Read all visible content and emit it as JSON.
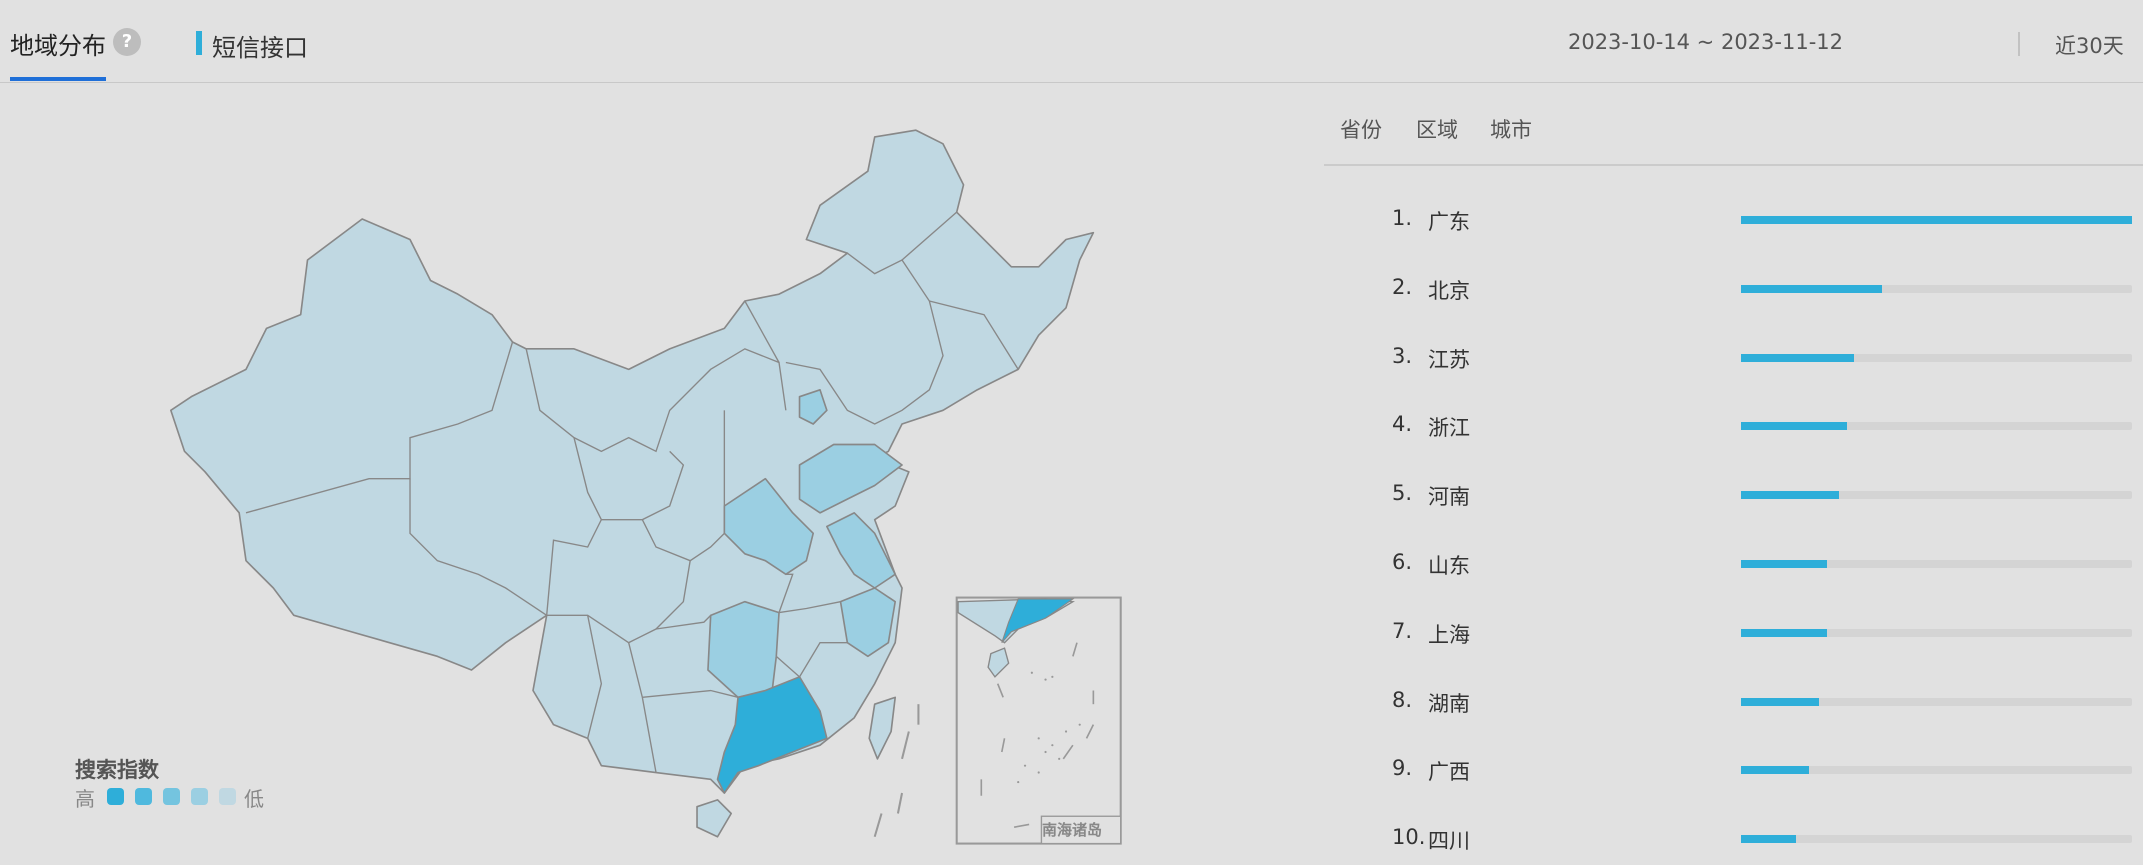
{
  "header": {
    "tabs": [
      {
        "label": "地域分布",
        "active": true
      },
      {
        "label": "短信接口"
      }
    ],
    "help_icon": "question-circle-icon",
    "date_range": "2023-10-14 ~ 2023-11-12",
    "preset": "近30天"
  },
  "subtabs": [
    "省份",
    "区域",
    "城市"
  ],
  "ranking": [
    {
      "rank": "1.",
      "name": "广东",
      "value": 1.0
    },
    {
      "rank": "2.",
      "name": "北京",
      "value": 0.36
    },
    {
      "rank": "3.",
      "name": "江苏",
      "value": 0.29
    },
    {
      "rank": "4.",
      "name": "浙江",
      "value": 0.27
    },
    {
      "rank": "5.",
      "name": "河南",
      "value": 0.25
    },
    {
      "rank": "6.",
      "name": "山东",
      "value": 0.22
    },
    {
      "rank": "7.",
      "name": "上海",
      "value": 0.22
    },
    {
      "rank": "8.",
      "name": "湖南",
      "value": 0.2
    },
    {
      "rank": "9.",
      "name": "广西",
      "value": 0.175
    },
    {
      "rank": "10.",
      "name": "四川",
      "value": 0.14
    }
  ],
  "legend": {
    "title": "搜索指数",
    "high": "高",
    "low": "低",
    "colors": [
      "#2eaed9",
      "#4fb9de",
      "#74c4df",
      "#9bcfe2",
      "#c0d8e2"
    ]
  },
  "map": {
    "inset_label": "南海诸岛",
    "base_color": "#c0d8e2",
    "mid_color": "#9bcfe2",
    "top_color": "#2eaed9",
    "border_color": "#888888"
  },
  "colors": {
    "accent": "#1f6fd8",
    "bar": "#2eaed9",
    "track": "#d4d4d4"
  }
}
